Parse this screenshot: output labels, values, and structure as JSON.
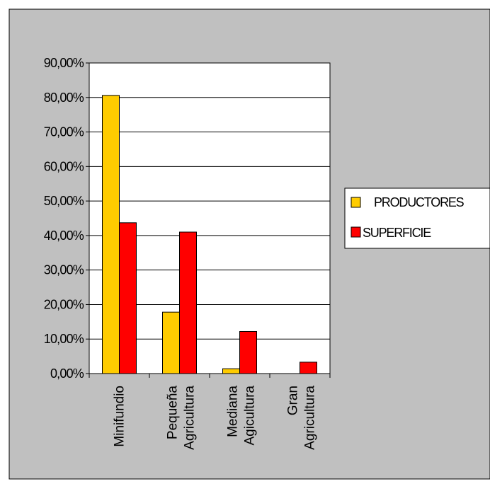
{
  "chart_data": {
    "type": "bar",
    "categories": [
      [
        "Minifundio"
      ],
      [
        "Pequeña",
        "Agricultura"
      ],
      [
        "Mediana",
        "Agicultura"
      ],
      [
        "Gran",
        "Agricultura"
      ]
    ],
    "series": [
      {
        "name": "PRODUCTORES",
        "values": [
          80.6,
          17.8,
          1.4,
          0.0
        ],
        "color": "#ffcc00"
      },
      {
        "name": "SUPERFICIE",
        "values": [
          43.7,
          41.0,
          12.2,
          3.3
        ],
        "color": "#ff0000"
      }
    ],
    "y_ticks": [
      "0,00%",
      "10,00%",
      "20,00%",
      "30,00%",
      "40,00%",
      "50,00%",
      "60,00%",
      "70,00%",
      "80,00%",
      "90,00%"
    ],
    "ylim": [
      0,
      90
    ],
    "grid": true,
    "legend_position": "right",
    "title": "",
    "xlabel": "",
    "ylabel": "",
    "colors": {
      "chart_area_bg": "#c0c0c0",
      "plot_bg": "#ffffff",
      "gridline": "#000000",
      "legend_bg": "#ffffff"
    }
  }
}
